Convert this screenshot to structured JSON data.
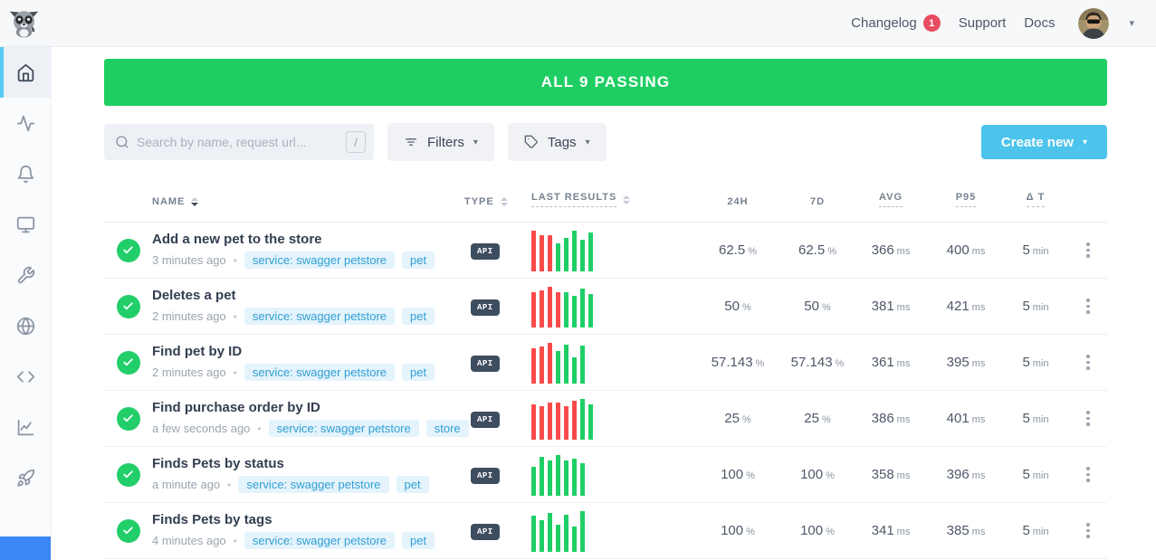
{
  "topbar": {
    "changelog_label": "Changelog",
    "changelog_badge": "1",
    "support_label": "Support",
    "docs_label": "Docs"
  },
  "sidebar": {
    "items": [
      {
        "icon": "home-icon",
        "active": true
      },
      {
        "icon": "activity-icon",
        "active": false
      },
      {
        "icon": "bell-icon",
        "active": false
      },
      {
        "icon": "monitor-icon",
        "active": false
      },
      {
        "icon": "wrench-icon",
        "active": false
      },
      {
        "icon": "globe-icon",
        "active": false
      },
      {
        "icon": "code-icon",
        "active": false
      },
      {
        "icon": "chart-icon",
        "active": false
      },
      {
        "icon": "rocket-icon",
        "active": false
      }
    ]
  },
  "banner": {
    "text": "ALL 9 PASSING"
  },
  "toolbar": {
    "search_placeholder": "Search by name, request url...",
    "search_shortcut": "/",
    "filters_label": "Filters",
    "tags_label": "Tags",
    "create_new_label": "Create new"
  },
  "table": {
    "headers": {
      "name": "NAME",
      "type": "TYPE",
      "last_results": "LAST RESULTS",
      "h24": "24H",
      "d7": "7D",
      "avg": "AVG",
      "p95": "P95",
      "dt": "Δ T"
    },
    "rows": [
      {
        "status": "passing",
        "name": "Add a new pet to the store",
        "age": "3 minutes ago",
        "tags": [
          "service: swagger petstore",
          "pet"
        ],
        "type": "API",
        "bars": [
          [
            "r",
            96
          ],
          [
            "r",
            86
          ],
          [
            "r",
            86
          ],
          [
            "g",
            66
          ],
          [
            "g",
            80
          ],
          [
            "g",
            97
          ],
          [
            "g",
            74
          ],
          [
            "g",
            92
          ]
        ],
        "h24": {
          "v": "62.5",
          "u": "%"
        },
        "d7": {
          "v": "62.5",
          "u": "%"
        },
        "avg": {
          "v": "366",
          "u": "ms"
        },
        "p95": {
          "v": "400",
          "u": "ms"
        },
        "dt": {
          "v": "5",
          "u": "min"
        }
      },
      {
        "status": "passing",
        "name": "Deletes a pet",
        "age": "2 minutes ago",
        "tags": [
          "service: swagger petstore",
          "pet"
        ],
        "type": "API",
        "bars": [
          [
            "r",
            84
          ],
          [
            "r",
            88
          ],
          [
            "r",
            97
          ],
          [
            "r",
            84
          ],
          [
            "g",
            84
          ],
          [
            "g",
            74
          ],
          [
            "g",
            92
          ],
          [
            "g",
            80
          ]
        ],
        "h24": {
          "v": "50",
          "u": "%"
        },
        "d7": {
          "v": "50",
          "u": "%"
        },
        "avg": {
          "v": "381",
          "u": "ms"
        },
        "p95": {
          "v": "421",
          "u": "ms"
        },
        "dt": {
          "v": "5",
          "u": "min"
        }
      },
      {
        "status": "passing",
        "name": "Find pet by ID",
        "age": "2 minutes ago",
        "tags": [
          "service: swagger petstore",
          "pet"
        ],
        "type": "API",
        "bars": [
          [
            "r",
            84
          ],
          [
            "r",
            88
          ],
          [
            "r",
            97
          ],
          [
            "g",
            78
          ],
          [
            "g",
            92
          ],
          [
            "g",
            62
          ],
          [
            "g",
            90
          ]
        ],
        "h24": {
          "v": "57.143",
          "u": "%"
        },
        "d7": {
          "v": "57.143",
          "u": "%"
        },
        "avg": {
          "v": "361",
          "u": "ms"
        },
        "p95": {
          "v": "395",
          "u": "ms"
        },
        "dt": {
          "v": "5",
          "u": "min"
        }
      },
      {
        "status": "passing",
        "name": "Find purchase order by ID",
        "age": "a few seconds ago",
        "tags": [
          "service: swagger petstore",
          "store"
        ],
        "type": "API",
        "bars": [
          [
            "r",
            84
          ],
          [
            "r",
            80
          ],
          [
            "r",
            88
          ],
          [
            "r",
            88
          ],
          [
            "r",
            80
          ],
          [
            "r",
            92
          ],
          [
            "g",
            97
          ],
          [
            "g",
            84
          ]
        ],
        "h24": {
          "v": "25",
          "u": "%"
        },
        "d7": {
          "v": "25",
          "u": "%"
        },
        "avg": {
          "v": "386",
          "u": "ms"
        },
        "p95": {
          "v": "401",
          "u": "ms"
        },
        "dt": {
          "v": "5",
          "u": "min"
        }
      },
      {
        "status": "passing",
        "name": "Finds Pets by status",
        "age": "a minute ago",
        "tags": [
          "service: swagger petstore",
          "pet"
        ],
        "type": "API",
        "bars": [
          [
            "g",
            68
          ],
          [
            "g",
            92
          ],
          [
            "g",
            84
          ],
          [
            "g",
            97
          ],
          [
            "g",
            84
          ],
          [
            "g",
            88
          ],
          [
            "g",
            78
          ]
        ],
        "h24": {
          "v": "100",
          "u": "%"
        },
        "d7": {
          "v": "100",
          "u": "%"
        },
        "avg": {
          "v": "358",
          "u": "ms"
        },
        "p95": {
          "v": "396",
          "u": "ms"
        },
        "dt": {
          "v": "5",
          "u": "min"
        }
      },
      {
        "status": "passing",
        "name": "Finds Pets by tags",
        "age": "4 minutes ago",
        "tags": [
          "service: swagger petstore",
          "pet"
        ],
        "type": "API",
        "bars": [
          [
            "g",
            86
          ],
          [
            "g",
            76
          ],
          [
            "g",
            92
          ],
          [
            "g",
            64
          ],
          [
            "g",
            88
          ],
          [
            "g",
            60
          ],
          [
            "g",
            97
          ]
        ],
        "h24": {
          "v": "100",
          "u": "%"
        },
        "d7": {
          "v": "100",
          "u": "%"
        },
        "avg": {
          "v": "341",
          "u": "ms"
        },
        "p95": {
          "v": "385",
          "u": "ms"
        },
        "dt": {
          "v": "5",
          "u": "min"
        }
      }
    ]
  },
  "colors": {
    "banner_green": "#1fce63",
    "bar_green": "#1fce66",
    "bar_red": "#fb4b4b",
    "create_blue": "#4cc4ec",
    "badge_red": "#e74c60",
    "tag_blue": "#2fa0d5",
    "sidebar_active_accent": "#55ccf2",
    "type_badge_bg": "#3f4d61"
  }
}
